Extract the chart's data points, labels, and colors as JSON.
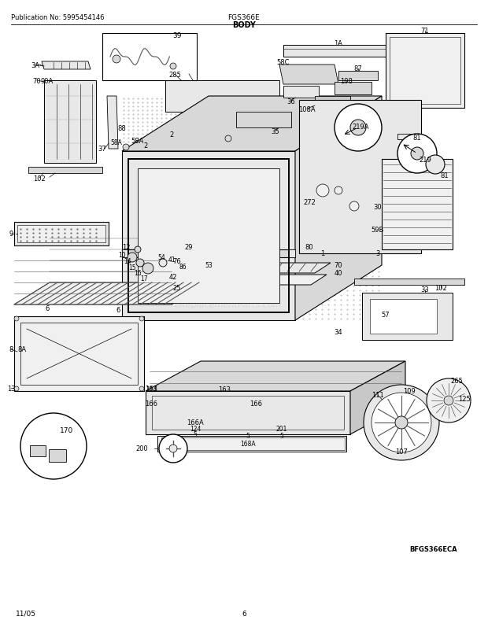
{
  "title": "BODY",
  "model": "FGS366E",
  "publication": "Publication No: 5995454146",
  "page_number": "6",
  "date": "11/05",
  "diagram_code": "BFGS366ECA",
  "bg_color": "#ffffff",
  "text_color": "#000000",
  "fig_width": 6.2,
  "fig_height": 8.03,
  "dpi": 100,
  "watermark": "eReplacementParts.com"
}
